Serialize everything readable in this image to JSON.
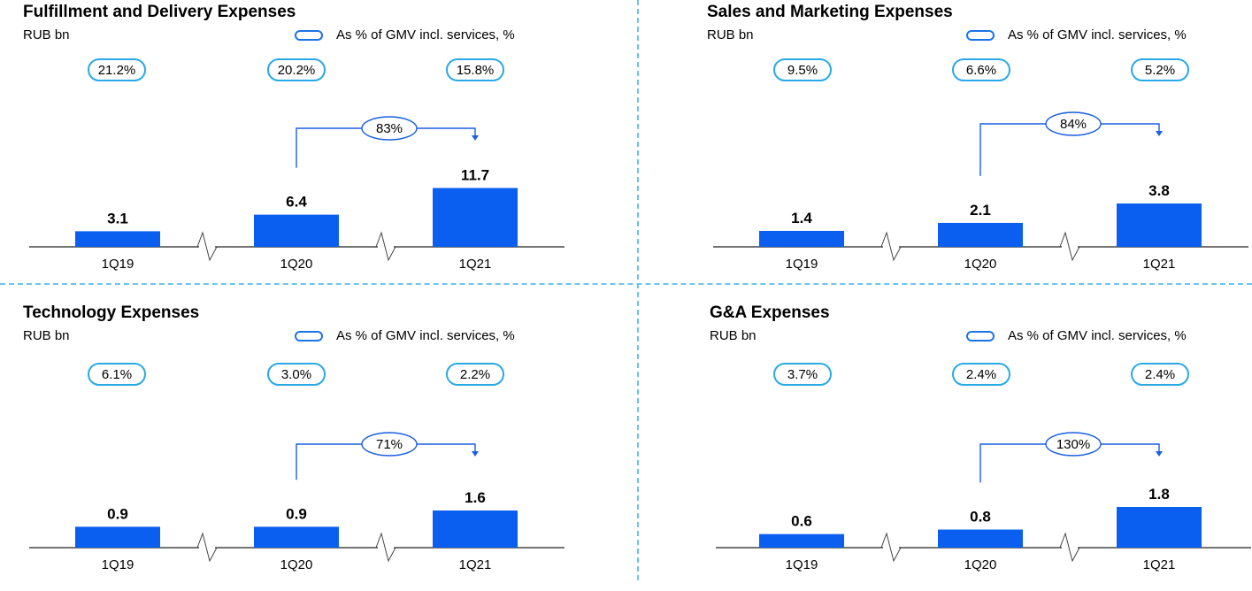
{
  "legend_label": "As % of GMV incl. services, %",
  "colors": {
    "bar": "#0a5ef0",
    "arrow": "#1a5fe0",
    "pill": "#29a9e8",
    "divider": "#6ec3ee"
  },
  "chart_data": [
    {
      "type": "bar",
      "title": "Fulfillment and Delivery Expenses",
      "unit": "RUB bn",
      "categories": [
        "1Q19",
        "1Q20",
        "1Q21"
      ],
      "values": [
        3.1,
        6.4,
        11.7
      ],
      "value_labels": [
        "3.1",
        "6.4",
        "11.7"
      ],
      "share_of_gmv": [
        "21.2%",
        "20.2%",
        "15.8%"
      ],
      "growth_label": "83%",
      "axis_breaks": true
    },
    {
      "type": "bar",
      "title": "Sales and Marketing Expenses",
      "unit": "RUB bn",
      "categories": [
        "1Q19",
        "1Q20",
        "1Q21"
      ],
      "values": [
        1.4,
        2.1,
        3.8
      ],
      "value_labels": [
        "1.4",
        "2.1",
        "3.8"
      ],
      "share_of_gmv": [
        "9.5%",
        "6.6%",
        "5.2%"
      ],
      "growth_label": "84%",
      "axis_breaks": true
    },
    {
      "type": "bar",
      "title": "Technology Expenses",
      "unit": "RUB bn",
      "categories": [
        "1Q19",
        "1Q20",
        "1Q21"
      ],
      "values": [
        0.9,
        0.9,
        1.6
      ],
      "value_labels": [
        "0.9",
        "0.9",
        "1.6"
      ],
      "share_of_gmv": [
        "6.1%",
        "3.0%",
        "2.2%"
      ],
      "growth_label": "71%",
      "axis_breaks": true
    },
    {
      "type": "bar",
      "title": "G&A Expenses",
      "unit": "RUB bn",
      "categories": [
        "1Q19",
        "1Q20",
        "1Q21"
      ],
      "values": [
        0.6,
        0.8,
        1.8
      ],
      "value_labels": [
        "0.6",
        "0.8",
        "1.8"
      ],
      "share_of_gmv": [
        "3.7%",
        "2.4%",
        "2.4%"
      ],
      "growth_label": "130%",
      "axis_breaks": true
    }
  ]
}
